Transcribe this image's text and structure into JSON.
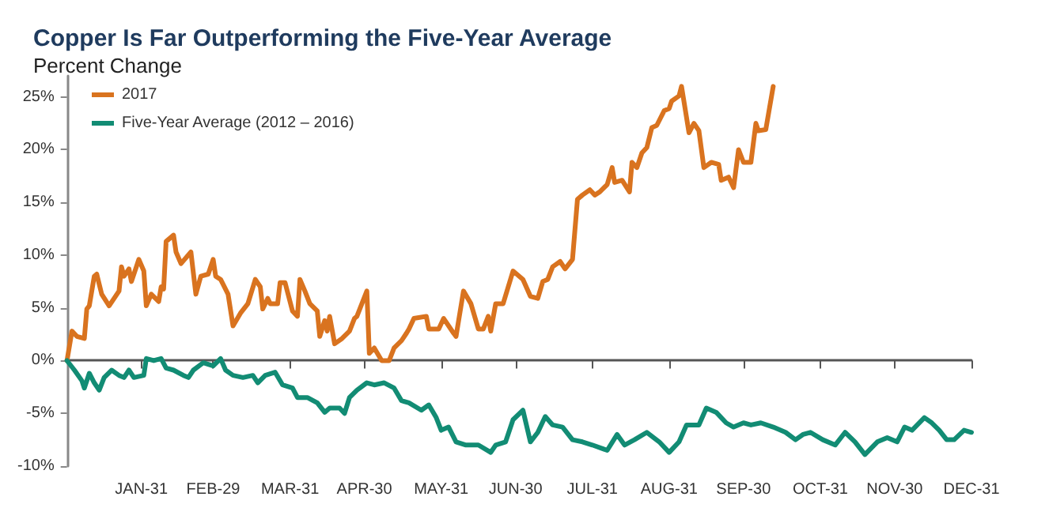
{
  "chart_data": {
    "type": "line",
    "title": "Copper Is Far Outperforming the Five-Year Average",
    "ylabel": "Percent Change",
    "xlim": [
      "--01-01",
      "--12-31"
    ],
    "ylim": [
      -10,
      27
    ],
    "xticks": [
      {
        "value": "--01-31",
        "label": "JAN-31"
      },
      {
        "value": "--02-29",
        "label": "FEB-29"
      },
      {
        "value": "--03-31",
        "label": "MAR-31"
      },
      {
        "value": "--04-30",
        "label": "APR-30"
      },
      {
        "value": "--05-31",
        "label": "MAY-31"
      },
      {
        "value": "--06-30",
        "label": "JUN-30"
      },
      {
        "value": "--07-31",
        "label": "JUL-31"
      },
      {
        "value": "--08-31",
        "label": "AUG-31"
      },
      {
        "value": "--09-30",
        "label": "SEP-30"
      },
      {
        "value": "--10-31",
        "label": "OCT-31"
      },
      {
        "value": "--11-30",
        "label": "NOV-30"
      },
      {
        "value": "--12-31",
        "label": "DEC-31"
      }
    ],
    "yticks": [
      {
        "value": -10,
        "label": "-10%"
      },
      {
        "value": -5,
        "label": "-5%"
      },
      {
        "value": 0,
        "label": "0%"
      },
      {
        "value": 5,
        "label": "5%"
      },
      {
        "value": 10,
        "label": "10%"
      },
      {
        "value": 15,
        "label": "15%"
      },
      {
        "value": 20,
        "label": "20%"
      },
      {
        "value": 25,
        "label": "25%"
      }
    ],
    "legend": "top left",
    "marker": "none",
    "line_style": "solid",
    "series": [
      {
        "name": "2017",
        "color": "#d9731f",
        "x": [
          "--01-01",
          "--01-03",
          "--01-05",
          "--01-08",
          "--01-09",
          "--01-10",
          "--01-12",
          "--01-13",
          "--01-15",
          "--01-18",
          "--01-22",
          "--01-23",
          "--01-24",
          "--01-26",
          "--01-27",
          "--01-30",
          "--02-01",
          "--02-02",
          "--02-04",
          "--02-07",
          "--02-08",
          "--02-09",
          "--02-10",
          "--02-13",
          "--02-14",
          "--02-16",
          "--02-20",
          "--02-22",
          "--02-24",
          "--02-27",
          "--02-29",
          "--03-01",
          "--03-03",
          "--03-06",
          "--03-08",
          "--03-11",
          "--03-14",
          "--03-17",
          "--03-19",
          "--03-20",
          "--03-22",
          "--03-23",
          "--03-26",
          "--03-27",
          "--03-29",
          "--04-01",
          "--04-03",
          "--04-04",
          "--04-06",
          "--04-08",
          "--04-11",
          "--04-12",
          "--04-14",
          "--04-15",
          "--04-16",
          "--04-18",
          "--04-21",
          "--04-24",
          "--04-26",
          "--04-27",
          "--05-01",
          "--05-02",
          "--05-04",
          "--05-07",
          "--05-10",
          "--05-12",
          "--05-15",
          "--05-17",
          "--05-18",
          "--05-20",
          "--05-25",
          "--05-26",
          "--05-30",
          "--06-01",
          "--06-05",
          "--06-06",
          "--06-09",
          "--06-12",
          "--06-15",
          "--06-17",
          "--06-19",
          "--06-20",
          "--06-22",
          "--06-25",
          "--06-29",
          "--07-03",
          "--07-06",
          "--07-09",
          "--07-11",
          "--07-13",
          "--07-15",
          "--07-18",
          "--07-20",
          "--07-23",
          "--07-25",
          "--07-27",
          "--07-30",
          "--08-01",
          "--08-03",
          "--08-06",
          "--08-08",
          "--08-09",
          "--08-12",
          "--08-15",
          "--08-16",
          "--08-18",
          "--08-20",
          "--08-22",
          "--08-24",
          "--08-26",
          "--08-29",
          "--08-31",
          "--09-01",
          "--09-04",
          "--09-05",
          "--09-08",
          "--09-10",
          "--09-12",
          "--09-14",
          "--09-17",
          "--09-20",
          "--09-21",
          "--09-24",
          "--09-26",
          "--09-28",
          "--09-30",
          "--10-03",
          "--10-05",
          "--10-06",
          "--10-09",
          "--10-12"
        ],
        "values": [
          0,
          2.8,
          2.3,
          2.1,
          4.9,
          5.2,
          8,
          8.2,
          6.3,
          5.2,
          6.6,
          8.9,
          8,
          8.7,
          7.5,
          9.6,
          8.5,
          5.2,
          6.3,
          5.6,
          7,
          6.8,
          11.3,
          11.9,
          10.3,
          9.2,
          10.3,
          6.3,
          8,
          8.2,
          9.6,
          8,
          7.7,
          6.3,
          3.3,
          4.5,
          5.4,
          7.7,
          7,
          4.9,
          5.9,
          5.4,
          5.4,
          7.4,
          7.4,
          4.7,
          4.2,
          7.7,
          6.6,
          5.4,
          4.7,
          2.3,
          3.8,
          2.8,
          4.2,
          1.6,
          2.1,
          2.8,
          4,
          4.2,
          6.6,
          0.7,
          1.2,
          0,
          0,
          1.2,
          1.9,
          2.6,
          3,
          4,
          4.2,
          3,
          3,
          4,
          2.6,
          2.3,
          6.6,
          5.4,
          3,
          3,
          4.2,
          2.8,
          5.4,
          5.4,
          8.5,
          7.7,
          6.1,
          5.9,
          7.5,
          7.7,
          8.9,
          9.4,
          8.7,
          9.6,
          15.3,
          15.7,
          16.2,
          15.7,
          16,
          16.7,
          18.3,
          16.9,
          17.1,
          16,
          18.8,
          18.3,
          19.7,
          20.2,
          22.1,
          22.3,
          23.7,
          23.9,
          24.6,
          25.1,
          26,
          21.6,
          22.5,
          21.8,
          18.3,
          18.8,
          18.6,
          17.1,
          17.4,
          16.4,
          20,
          18.8,
          18.8,
          22.5,
          21.8,
          21.9,
          26
        ]
      },
      {
        "name": "Five-Year Average (2012 – 2016)",
        "color": "#128c74",
        "x": [
          "--01-01",
          "--01-04",
          "--01-07",
          "--01-08",
          "--01-10",
          "--01-12",
          "--01-14",
          "--01-16",
          "--01-19",
          "--01-22",
          "--01-24",
          "--01-26",
          "--01-28",
          "--02-01",
          "--02-02",
          "--02-05",
          "--02-08",
          "--02-10",
          "--02-13",
          "--02-17",
          "--02-19",
          "--02-21",
          "--02-25",
          "--02-29",
          "--03-03",
          "--03-05",
          "--03-08",
          "--03-12",
          "--03-16",
          "--03-18",
          "--03-21",
          "--03-25",
          "--03-28",
          "--04-01",
          "--04-03",
          "--04-07",
          "--04-11",
          "--04-14",
          "--04-16",
          "--04-20",
          "--04-22",
          "--04-24",
          "--04-27",
          "--05-01",
          "--05-04",
          "--05-08",
          "--05-12",
          "--05-15",
          "--05-18",
          "--05-23",
          "--05-26",
          "--05-29",
          "--05-31",
          "--06-03",
          "--06-06",
          "--06-10",
          "--06-15",
          "--06-20",
          "--06-22",
          "--06-26",
          "--06-29",
          "--07-03",
          "--07-06",
          "--07-09",
          "--07-12",
          "--07-15",
          "--07-19",
          "--07-23",
          "--07-27",
          "--07-31",
          "--08-06",
          "--08-10",
          "--08-13",
          "--08-17",
          "--08-22",
          "--08-27",
          "--08-31",
          "--09-04",
          "--09-07",
          "--09-12",
          "--09-15",
          "--09-19",
          "--09-23",
          "--09-26",
          "--09-30",
          "--10-03",
          "--10-07",
          "--10-12",
          "--10-17",
          "--10-21",
          "--10-24",
          "--10-27",
          "--11-01",
          "--11-06",
          "--11-10",
          "--11-14",
          "--11-18",
          "--11-23",
          "--11-27",
          "--12-01",
          "--12-04",
          "--12-07",
          "--12-12",
          "--12-15",
          "--12-18",
          "--12-21",
          "--12-24",
          "--12-28",
          "--12-31"
        ],
        "values": [
          0,
          -0.9,
          -1.9,
          -2.6,
          -1.2,
          -2.1,
          -2.8,
          -1.6,
          -0.9,
          -1.4,
          -1.6,
          -0.9,
          -1.6,
          -1.4,
          0.2,
          0,
          0.2,
          -0.7,
          -0.9,
          -1.4,
          -1.6,
          -0.9,
          -0.2,
          -0.5,
          0.2,
          -0.9,
          -1.4,
          -1.6,
          -1.4,
          -2.1,
          -1.4,
          -1.1,
          -2.3,
          -2.6,
          -3.5,
          -3.5,
          -4,
          -4.9,
          -4.5,
          -4.5,
          -5,
          -3.5,
          -2.8,
          -2.1,
          -2.3,
          -2.1,
          -2.6,
          -3.8,
          -4,
          -4.7,
          -4.2,
          -5.4,
          -6.6,
          -6.3,
          -7.7,
          -8,
          -8,
          -8.7,
          -8,
          -7.7,
          -5.6,
          -4.7,
          -7.7,
          -6.8,
          -5.3,
          -6.1,
          -6.3,
          -7.5,
          -7.7,
          -8,
          -8.5,
          -7,
          -8,
          -7.5,
          -6.8,
          -7.7,
          -8.7,
          -7.7,
          -6.1,
          -6.1,
          -4.5,
          -4.9,
          -5.9,
          -6.3,
          -5.9,
          -6.1,
          -5.9,
          -6.3,
          -6.8,
          -7.5,
          -7,
          -6.8,
          -7.5,
          -8,
          -6.8,
          -7.7,
          -8.9,
          -7.7,
          -7.3,
          -7.7,
          -6.3,
          -6.6,
          -5.4,
          -5.9,
          -6.6,
          -7.5,
          -7.5,
          -6.6,
          -6.8
        ]
      }
    ]
  }
}
